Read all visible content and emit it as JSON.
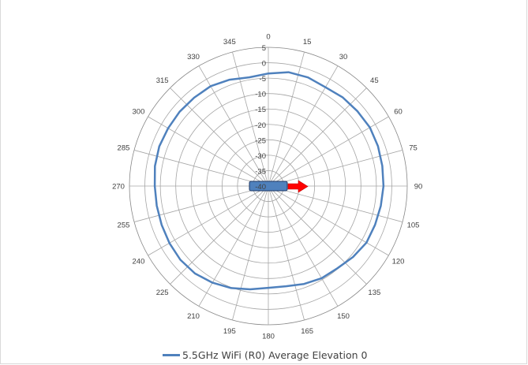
{
  "chart_data": {
    "type": "polar-line",
    "angular_ticks": [
      "0",
      "15",
      "30",
      "45",
      "60",
      "75",
      "90",
      "105",
      "120",
      "135",
      "150",
      "165",
      "180",
      "195",
      "210",
      "225",
      "240",
      "255",
      "270",
      "285",
      "300",
      "315",
      "330",
      "345"
    ],
    "radial_ticks": [
      "5",
      "0",
      "-5",
      "-10",
      "-15",
      "-20",
      "-25",
      "-30",
      "-35",
      "-40"
    ],
    "rlim": [
      -40,
      5
    ],
    "grid": true,
    "legend_position": "bottom",
    "series": [
      {
        "name": "5.5GHz WiFi (R0) Average Elevation 0",
        "color": "#4f81bd",
        "theta": [
          0,
          10,
          20,
          30,
          40,
          50,
          60,
          70,
          80,
          90,
          100,
          110,
          120,
          130,
          140,
          150,
          160,
          170,
          180,
          190,
          200,
          210,
          220,
          230,
          240,
          250,
          260,
          270,
          280,
          290,
          300,
          310,
          320,
          330,
          340,
          350,
          360
        ],
        "values": [
          -3.5,
          -2.5,
          -2.5,
          -3,
          -2.5,
          -2.3,
          -2,
          -2.2,
          -2.5,
          -2.7,
          -3,
          -3.2,
          -3.3,
          -4.2,
          -5.2,
          -5.5,
          -6.2,
          -7,
          -7,
          -6,
          -4.8,
          -3.8,
          -3,
          -2.8,
          -3,
          -3.2,
          -3.3,
          -3.2,
          -2.7,
          -2.4,
          -2.5,
          -2.5,
          -2.6,
          -2.6,
          -3.3,
          -4.2,
          -3.5
        ]
      }
    ],
    "annotations": [
      {
        "type": "device-marker",
        "color": "#4f81bd"
      },
      {
        "type": "arrow",
        "direction_deg": 90,
        "color": "#ff0000"
      }
    ]
  }
}
